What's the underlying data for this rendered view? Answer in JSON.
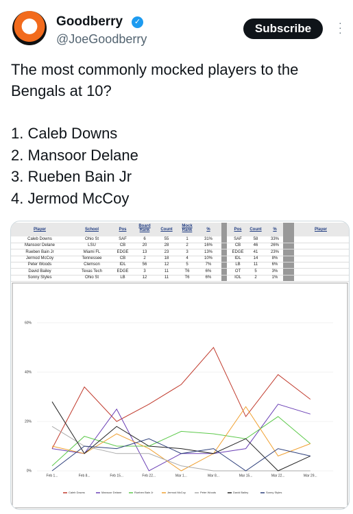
{
  "header": {
    "name": "Goodberry",
    "handle": "@JoeGoodberry",
    "button": "Subscribe"
  },
  "post": {
    "text": "The most commonly mocked players to the Bengals at 10?",
    "list": [
      "1. Caleb Downs",
      "2. Mansoor Delane",
      "3. Rueben Bain Jr",
      "4. Jermod McCoy"
    ]
  },
  "table": {
    "columns": [
      "Player",
      "School",
      "Pos",
      "Board Rank",
      "Count",
      "Mock Rank",
      "%"
    ],
    "rows": [
      [
        "Caleb Downs",
        "Ohio St",
        "SAF",
        6,
        55,
        1,
        "31%"
      ],
      [
        "Mansoor Delane",
        "LSU",
        "CB",
        20,
        28,
        2,
        "16%"
      ],
      [
        "Rueben Bain Jr",
        "Miami FL",
        "EDGE",
        13,
        23,
        3,
        "13%"
      ],
      [
        "Jermod McCoy",
        "Tennessee",
        "CB",
        2,
        18,
        4,
        "10%"
      ],
      [
        "Peter Woods",
        "Clemson",
        "IDL",
        56,
        12,
        5,
        "7%"
      ],
      [
        "David Bailey",
        "Texas Tech",
        "EDGE",
        3,
        11,
        "T6",
        "6%"
      ],
      [
        "Sonny Styles",
        "Ohio St",
        "LB",
        12,
        11,
        "T6",
        "6%"
      ]
    ],
    "summary_columns": [
      "Pos",
      "Count",
      "%"
    ],
    "summary_rows": [
      [
        "SAF",
        58,
        "33%"
      ],
      [
        "CB",
        46,
        "26%"
      ],
      [
        "EDGE",
        41,
        "23%"
      ],
      [
        "IDL",
        14,
        "8%"
      ],
      [
        "LB",
        11,
        "6%"
      ],
      [
        "OT",
        5,
        "3%"
      ],
      [
        "IOL",
        2,
        "1%"
      ]
    ],
    "extra_column": "Player"
  },
  "chart_data": {
    "type": "line",
    "x": [
      "Feb 1...",
      "Feb 8...",
      "Feb 15...",
      "Feb 22...",
      "Mar 1...",
      "Mar 8...",
      "Mar 15...",
      "Mar 22...",
      "Mar 29..."
    ],
    "ylim": [
      0,
      70
    ],
    "yticks": [
      {
        "value": 0,
        "label": "0%"
      },
      {
        "value": 20,
        "label": "20%"
      },
      {
        "value": 40,
        "label": "40%"
      },
      {
        "value": 60,
        "label": "60%"
      }
    ],
    "series": [
      {
        "name": "Caleb Downs",
        "color": "#c0392b",
        "values": [
          9,
          34,
          20,
          27,
          35,
          50,
          22,
          39,
          29
        ]
      },
      {
        "name": "Mansoor Delane",
        "color": "#6a3fb5",
        "values": [
          9,
          7,
          25,
          0,
          7,
          7,
          9,
          27,
          23
        ]
      },
      {
        "name": "Rueben Bain Jr",
        "color": "#5cc94a",
        "values": [
          2,
          14,
          10,
          10,
          16,
          15,
          13,
          22,
          11
        ]
      },
      {
        "name": "Jermod McCoy",
        "color": "#f0a030",
        "values": [
          10,
          7,
          15,
          9,
          0,
          7,
          26,
          6,
          11
        ]
      },
      {
        "name": "Peter Woods",
        "color": "#aaaaaa",
        "values": [
          18,
          10,
          7,
          7,
          2,
          0,
          0,
          0,
          0
        ]
      },
      {
        "name": "David Bailey",
        "color": "#222222",
        "values": [
          28,
          7,
          18,
          10,
          9,
          7,
          13,
          0,
          6
        ]
      },
      {
        "name": "Sonny Styles",
        "color": "#2c3e7a",
        "values": [
          0,
          10,
          9,
          13,
          7,
          9,
          0,
          9,
          6
        ]
      }
    ]
  }
}
